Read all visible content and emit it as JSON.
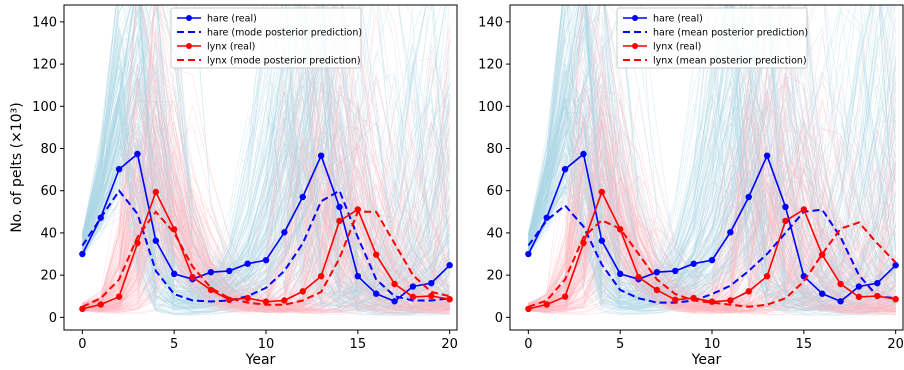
{
  "chart_data": [
    {
      "type": "line",
      "xlabel": "Year",
      "ylabel": "No. of pelts (×10³)",
      "xlim": [
        -1,
        20.4
      ],
      "ylim": [
        -6,
        148
      ],
      "xticks": [
        0,
        5,
        10,
        15,
        20
      ],
      "yticks": [
        0,
        20,
        40,
        60,
        80,
        100,
        120,
        140
      ],
      "legend_position": "top-center",
      "series": [
        {
          "name": "hare (real)",
          "color": "#0000ff",
          "style": "solid-marker",
          "x": [
            0,
            1,
            2,
            3,
            4,
            5,
            6,
            7,
            8,
            9,
            10,
            11,
            12,
            13,
            14,
            15,
            16,
            17,
            18,
            19,
            20
          ],
          "values": [
            30,
            47.2,
            70.2,
            77.4,
            36.3,
            20.6,
            18.1,
            21.4,
            22,
            25.4,
            27.1,
            40.3,
            57,
            76.6,
            52.3,
            19.5,
            11.2,
            7.6,
            14.6,
            16.2,
            24.7
          ]
        },
        {
          "name": "hare (mode posterior prediction)",
          "color": "#0000ff",
          "style": "dashed",
          "x": [
            0,
            1,
            2,
            3,
            4,
            5,
            6,
            7,
            8,
            9,
            10,
            11,
            12,
            13,
            14,
            15,
            16,
            17,
            18,
            19,
            20
          ],
          "values": [
            34,
            47,
            60,
            49,
            22,
            11,
            8,
            7.5,
            8,
            10,
            14,
            22,
            35,
            55,
            60,
            38,
            18,
            10,
            8,
            8,
            9
          ]
        },
        {
          "name": "lynx (real)",
          "color": "#ff0000",
          "style": "solid-marker",
          "x": [
            0,
            1,
            2,
            3,
            4,
            5,
            6,
            7,
            8,
            9,
            10,
            11,
            12,
            13,
            14,
            15,
            16,
            17,
            18,
            19,
            20
          ],
          "values": [
            4,
            6.1,
            9.8,
            35.2,
            59.4,
            41.7,
            19,
            13,
            8.3,
            9.1,
            7.4,
            8,
            12.3,
            19.5,
            45.7,
            51.1,
            29.7,
            15.8,
            9.7,
            10.1,
            8.6
          ]
        },
        {
          "name": "lynx (mode posterior prediction)",
          "color": "#ff0000",
          "style": "dashed",
          "x": [
            0,
            1,
            2,
            3,
            4,
            5,
            6,
            7,
            8,
            9,
            10,
            11,
            12,
            13,
            14,
            15,
            16,
            17,
            18,
            19,
            20
          ],
          "values": [
            5,
            9,
            18,
            38,
            50,
            40,
            24,
            14,
            9,
            7,
            6,
            6,
            8,
            12,
            28,
            50,
            50,
            35,
            20,
            12,
            10
          ]
        }
      ]
    },
    {
      "type": "line",
      "xlabel": "Year",
      "ylabel": "",
      "xlim": [
        -1,
        20.4
      ],
      "ylim": [
        -6,
        148
      ],
      "xticks": [
        0,
        5,
        10,
        15,
        20
      ],
      "yticks": [
        0,
        20,
        40,
        60,
        80,
        100,
        120,
        140
      ],
      "legend_position": "top-center",
      "series": [
        {
          "name": "hare (real)",
          "color": "#0000ff",
          "style": "solid-marker",
          "x": [
            0,
            1,
            2,
            3,
            4,
            5,
            6,
            7,
            8,
            9,
            10,
            11,
            12,
            13,
            14,
            15,
            16,
            17,
            18,
            19,
            20
          ],
          "values": [
            30,
            47.2,
            70.2,
            77.4,
            36.3,
            20.6,
            18.1,
            21.4,
            22,
            25.4,
            27.1,
            40.3,
            57,
            76.6,
            52.3,
            19.5,
            11.2,
            7.6,
            14.6,
            16.2,
            24.7
          ]
        },
        {
          "name": "hare (mean posterior prediction)",
          "color": "#0000ff",
          "style": "dashed",
          "x": [
            0,
            1,
            2,
            3,
            4,
            5,
            6,
            7,
            8,
            9,
            10,
            11,
            12,
            13,
            14,
            15,
            16,
            17,
            18,
            19,
            20
          ],
          "values": [
            34,
            46,
            53,
            43,
            25,
            13,
            9,
            7,
            7,
            8,
            11,
            15,
            22,
            30,
            40,
            50,
            51,
            38,
            20,
            10,
            9
          ]
        },
        {
          "name": "lynx (real)",
          "color": "#ff0000",
          "style": "solid-marker",
          "x": [
            0,
            1,
            2,
            3,
            4,
            5,
            6,
            7,
            8,
            9,
            10,
            11,
            12,
            13,
            14,
            15,
            16,
            17,
            18,
            19,
            20
          ],
          "values": [
            4,
            6.1,
            9.8,
            35.2,
            59.4,
            41.7,
            19,
            13,
            8.3,
            9.1,
            7.4,
            8,
            12.3,
            19.5,
            45.7,
            51.1,
            29.7,
            15.8,
            9.7,
            10.1,
            8.6
          ]
        },
        {
          "name": "lynx (mean posterior prediction)",
          "color": "#ff0000",
          "style": "dashed",
          "x": [
            0,
            1,
            2,
            3,
            4,
            5,
            6,
            7,
            8,
            9,
            10,
            11,
            12,
            13,
            14,
            15,
            16,
            17,
            18,
            19,
            20
          ],
          "values": [
            5,
            8,
            18,
            38,
            46,
            42,
            30,
            18,
            11,
            8,
            7,
            6,
            5,
            6,
            9,
            17,
            30,
            42,
            45,
            35,
            26
          ]
        }
      ]
    }
  ]
}
